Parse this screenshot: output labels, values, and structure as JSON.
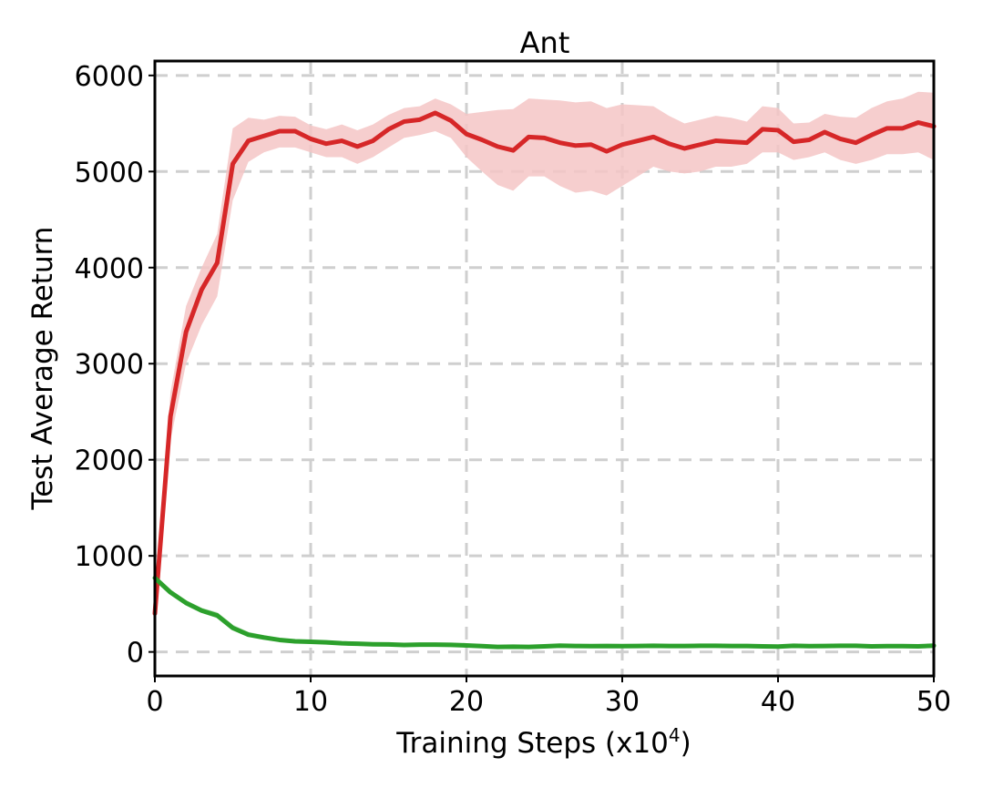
{
  "chart_data": {
    "type": "line",
    "title": "Ant",
    "xlabel": "Training Steps (x10",
    "xlabel_sup": "4",
    "xlabel_end": ")",
    "ylabel": "Test Average Return",
    "xlim": [
      0,
      50
    ],
    "ylim": [
      -250,
      6150
    ],
    "xticks": [
      0,
      10,
      20,
      30,
      40,
      50
    ],
    "yticks": [
      0,
      1000,
      2000,
      3000,
      4000,
      5000,
      6000
    ],
    "grid": true,
    "legend": "none",
    "series": [
      {
        "color": "#d62728",
        "band_color": "#f4c6c6",
        "x": [
          0,
          1,
          2,
          3,
          4,
          5,
          6,
          7,
          8,
          9,
          10,
          11,
          12,
          13,
          14,
          15,
          16,
          17,
          18,
          19,
          20,
          21,
          22,
          23,
          24,
          25,
          26,
          27,
          28,
          29,
          30,
          31,
          32,
          33,
          34,
          35,
          36,
          37,
          38,
          39,
          40,
          41,
          42,
          43,
          44,
          45,
          46,
          47,
          48,
          49,
          50
        ],
        "y": [
          400,
          2450,
          3330,
          3770,
          4050,
          5080,
          5320,
          5370,
          5420,
          5420,
          5340,
          5290,
          5320,
          5260,
          5320,
          5440,
          5520,
          5540,
          5610,
          5530,
          5390,
          5330,
          5260,
          5220,
          5360,
          5350,
          5300,
          5270,
          5280,
          5210,
          5280,
          5320,
          5360,
          5290,
          5240,
          5280,
          5320,
          5310,
          5300,
          5440,
          5430,
          5310,
          5330,
          5410,
          5340,
          5300,
          5380,
          5450,
          5450,
          5510,
          5470
        ],
        "lower": [
          400,
          2200,
          3000,
          3400,
          3700,
          4700,
          5100,
          5200,
          5250,
          5250,
          5200,
          5150,
          5150,
          5080,
          5150,
          5250,
          5350,
          5380,
          5420,
          5350,
          5150,
          5000,
          4860,
          4800,
          4950,
          4950,
          4850,
          4780,
          4800,
          4750,
          4850,
          4950,
          5050,
          5000,
          4980,
          5000,
          5050,
          5050,
          5080,
          5200,
          5200,
          5120,
          5150,
          5200,
          5120,
          5080,
          5120,
          5180,
          5180,
          5200,
          5120
        ],
        "upper": [
          400,
          2700,
          3600,
          4000,
          4350,
          5450,
          5560,
          5540,
          5580,
          5570,
          5480,
          5440,
          5490,
          5430,
          5490,
          5590,
          5660,
          5680,
          5760,
          5700,
          5600,
          5620,
          5640,
          5650,
          5760,
          5750,
          5740,
          5720,
          5730,
          5660,
          5700,
          5690,
          5680,
          5580,
          5500,
          5540,
          5580,
          5560,
          5520,
          5680,
          5660,
          5500,
          5510,
          5600,
          5570,
          5560,
          5660,
          5730,
          5760,
          5830,
          5820
        ]
      },
      {
        "color": "#2ca02c",
        "band_color": "#c7e6c7",
        "x": [
          0,
          1,
          2,
          3,
          4,
          5,
          6,
          7,
          8,
          9,
          10,
          11,
          12,
          13,
          14,
          15,
          16,
          17,
          18,
          19,
          20,
          21,
          22,
          23,
          24,
          25,
          26,
          27,
          28,
          29,
          30,
          31,
          32,
          33,
          34,
          35,
          36,
          37,
          38,
          39,
          40,
          41,
          42,
          43,
          44,
          45,
          46,
          47,
          48,
          49,
          50
        ],
        "y": [
          770,
          620,
          510,
          430,
          380,
          250,
          180,
          150,
          125,
          110,
          105,
          100,
          90,
          85,
          80,
          78,
          72,
          76,
          76,
          74,
          68,
          60,
          52,
          55,
          52,
          58,
          65,
          62,
          60,
          62,
          60,
          62,
          64,
          62,
          62,
          64,
          64,
          62,
          62,
          58,
          56,
          64,
          60,
          62,
          64,
          64,
          58,
          60,
          60,
          58,
          65
        ],
        "lower": [
          770,
          600,
          490,
          405,
          350,
          220,
          155,
          125,
          105,
          90,
          85,
          80,
          70,
          65,
          60,
          58,
          52,
          56,
          56,
          54,
          48,
          40,
          32,
          35,
          32,
          38,
          45,
          42,
          40,
          42,
          40,
          42,
          44,
          42,
          42,
          44,
          44,
          42,
          42,
          38,
          36,
          44,
          40,
          42,
          44,
          44,
          38,
          40,
          40,
          38,
          45
        ],
        "upper": [
          770,
          650,
          540,
          460,
          415,
          285,
          210,
          175,
          145,
          130,
          125,
          120,
          110,
          105,
          100,
          98,
          92,
          96,
          96,
          94,
          88,
          80,
          72,
          75,
          72,
          78,
          85,
          82,
          80,
          82,
          80,
          82,
          84,
          82,
          82,
          84,
          84,
          82,
          82,
          78,
          76,
          84,
          80,
          82,
          84,
          84,
          78,
          80,
          80,
          78,
          85
        ]
      }
    ]
  }
}
